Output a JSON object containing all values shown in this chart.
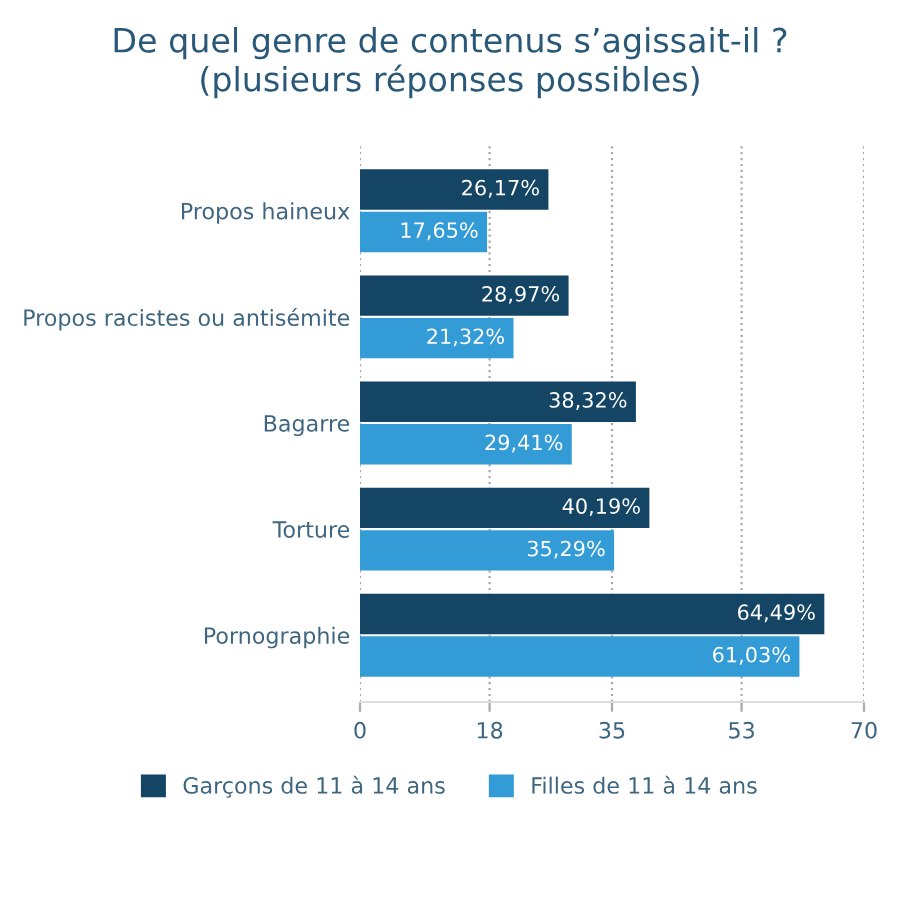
{
  "chart_data": {
    "type": "bar",
    "orientation": "horizontal",
    "title": "De quel genre de contenus s’agissait-il ?\n(plusieurs réponses possibles)",
    "categories": [
      "Propos haineux",
      "Propos racistes ou antisémite",
      "Bagarre",
      "Torture",
      "Pornographie"
    ],
    "series": [
      {
        "name": "Garçons de 11 à 14 ans",
        "color": "#154565",
        "values": [
          26.17,
          28.97,
          38.32,
          40.19,
          64.49
        ],
        "value_labels": [
          "26,17%",
          "28,97%",
          "38,32%",
          "40,19%",
          "64,49%"
        ]
      },
      {
        "name": "Filles de 11 à 14 ans",
        "color": "#339bd6",
        "values": [
          17.65,
          21.32,
          29.41,
          35.29,
          61.03
        ],
        "value_labels": [
          "17,65%",
          "21,32%",
          "29,41%",
          "35,29%",
          "61,03%"
        ]
      }
    ],
    "xlim": [
      0,
      70
    ],
    "xticks": [
      0,
      18,
      35,
      53,
      70
    ],
    "grid": "x",
    "legend": "bottom"
  }
}
